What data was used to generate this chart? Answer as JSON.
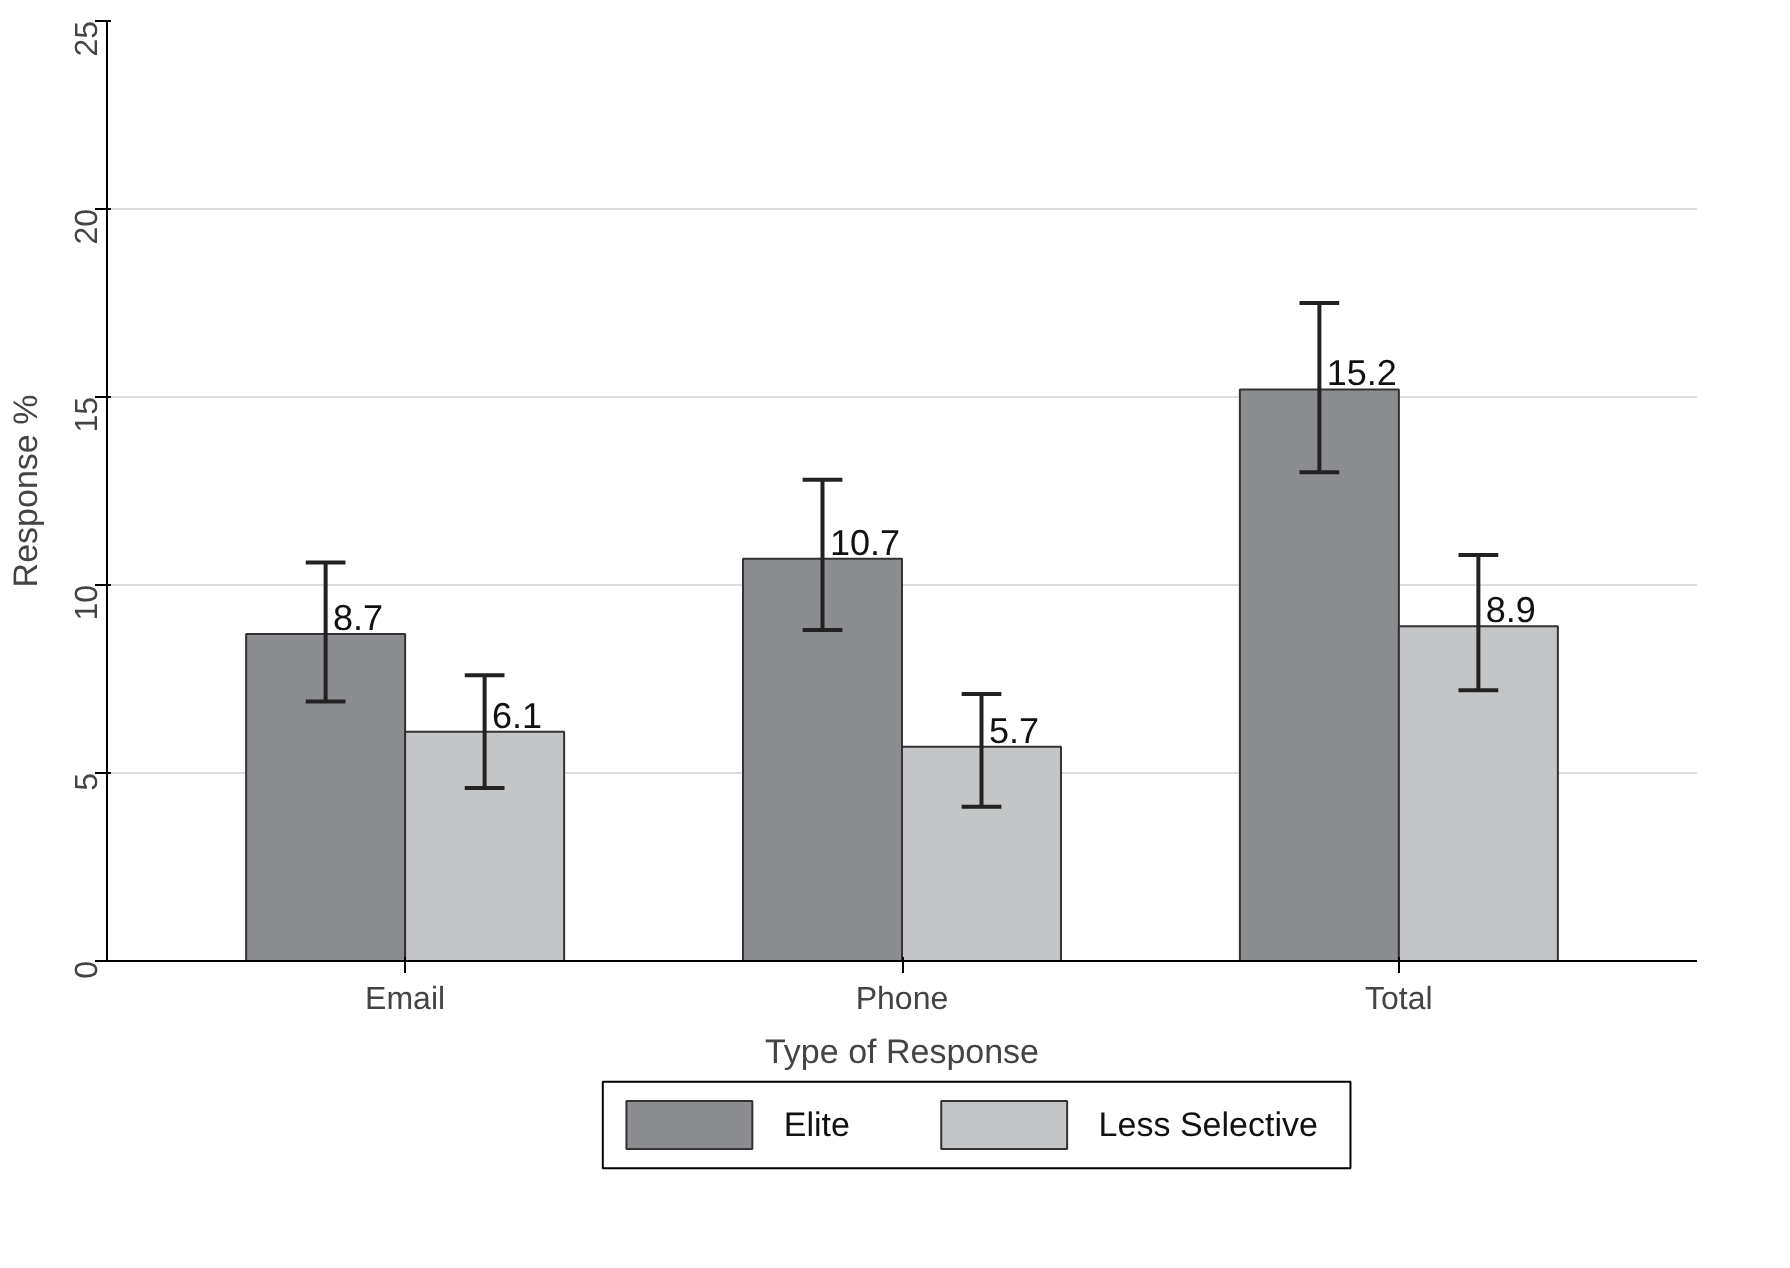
{
  "chart_data": {
    "type": "bar",
    "xlabel": "Type of Response",
    "ylabel": "Response %",
    "categories": [
      "Email",
      "Phone",
      "Total"
    ],
    "series": [
      {
        "name": "Elite",
        "color": "#8c8d91",
        "values": [
          8.7,
          10.7,
          15.2
        ],
        "errors": [
          [
            6.9,
            10.6
          ],
          [
            8.8,
            12.8
          ],
          [
            13.0,
            17.5
          ]
        ]
      },
      {
        "name": "Less Selective",
        "color": "#c4c5c7",
        "values": [
          6.1,
          5.7,
          8.9
        ],
        "errors": [
          [
            4.6,
            7.6
          ],
          [
            4.1,
            7.1
          ],
          [
            7.2,
            10.8
          ]
        ]
      }
    ],
    "ylim": [
      0,
      25
    ],
    "yticks": [
      0,
      5,
      10,
      15,
      20,
      25
    ],
    "grid": "y",
    "legend": "bottom",
    "data_labels": true
  }
}
